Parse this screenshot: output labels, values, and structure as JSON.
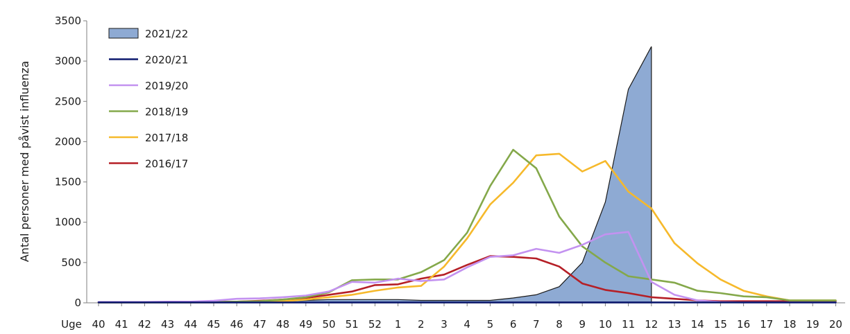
{
  "chart_data": {
    "type": "line",
    "ylabel": "Antal personer med påvist influenza",
    "xlabel": "Uge",
    "categories": [
      "40",
      "41",
      "42",
      "43",
      "44",
      "45",
      "46",
      "47",
      "48",
      "49",
      "50",
      "51",
      "52",
      "1",
      "2",
      "3",
      "4",
      "5",
      "6",
      "7",
      "8",
      "9",
      "10",
      "11",
      "12",
      "13",
      "14",
      "15",
      "16",
      "17",
      "18",
      "19",
      "20"
    ],
    "ylim": [
      0,
      3500
    ],
    "yticks": [
      0,
      500,
      1000,
      1500,
      2000,
      2500,
      3000,
      3500
    ],
    "grid": false,
    "legend_position": "top-left",
    "series": [
      {
        "name": "2021/22",
        "style": "area",
        "color": "#8eaad3",
        "stroke": "#1a1a1a",
        "values": [
          5,
          5,
          5,
          5,
          5,
          5,
          10,
          15,
          20,
          30,
          40,
          40,
          40,
          40,
          30,
          30,
          30,
          30,
          60,
          100,
          200,
          500,
          1250,
          2650,
          3180,
          null,
          null,
          null,
          null,
          null,
          null,
          null,
          null
        ]
      },
      {
        "name": "2020/21",
        "style": "line",
        "color": "#0d1a6e",
        "values": [
          5,
          5,
          5,
          5,
          5,
          5,
          5,
          5,
          5,
          5,
          5,
          5,
          5,
          5,
          5,
          5,
          5,
          5,
          5,
          5,
          5,
          5,
          5,
          5,
          5,
          5,
          5,
          5,
          5,
          5,
          5,
          5,
          5
        ]
      },
      {
        "name": "2019/20",
        "style": "line",
        "color": "#c392f0",
        "values": [
          10,
          10,
          10,
          15,
          15,
          25,
          50,
          55,
          70,
          90,
          140,
          260,
          250,
          300,
          270,
          290,
          440,
          570,
          590,
          670,
          620,
          720,
          850,
          880,
          260,
          100,
          30,
          10,
          5,
          5,
          5,
          5,
          5
        ]
      },
      {
        "name": "2018/19",
        "style": "line",
        "color": "#84a84a",
        "values": [
          5,
          5,
          5,
          5,
          5,
          10,
          15,
          20,
          40,
          70,
          130,
          280,
          290,
          290,
          380,
          530,
          870,
          1450,
          1900,
          1670,
          1070,
          700,
          500,
          330,
          290,
          250,
          150,
          120,
          80,
          70,
          30,
          30,
          30
        ]
      },
      {
        "name": "2017/18",
        "style": "line",
        "color": "#f6b92b",
        "values": [
          5,
          5,
          5,
          5,
          5,
          5,
          10,
          15,
          20,
          40,
          70,
          100,
          150,
          190,
          210,
          450,
          800,
          1220,
          1490,
          1830,
          1850,
          1630,
          1760,
          1380,
          1170,
          740,
          490,
          290,
          150,
          80,
          30,
          30,
          30
        ]
      },
      {
        "name": "2016/17",
        "style": "line",
        "color": "#b51f26",
        "values": [
          5,
          5,
          5,
          10,
          10,
          10,
          15,
          25,
          40,
          60,
          100,
          140,
          220,
          230,
          300,
          350,
          470,
          580,
          570,
          550,
          450,
          240,
          160,
          120,
          70,
          50,
          30,
          20,
          20,
          20,
          20,
          20,
          20
        ]
      }
    ]
  }
}
